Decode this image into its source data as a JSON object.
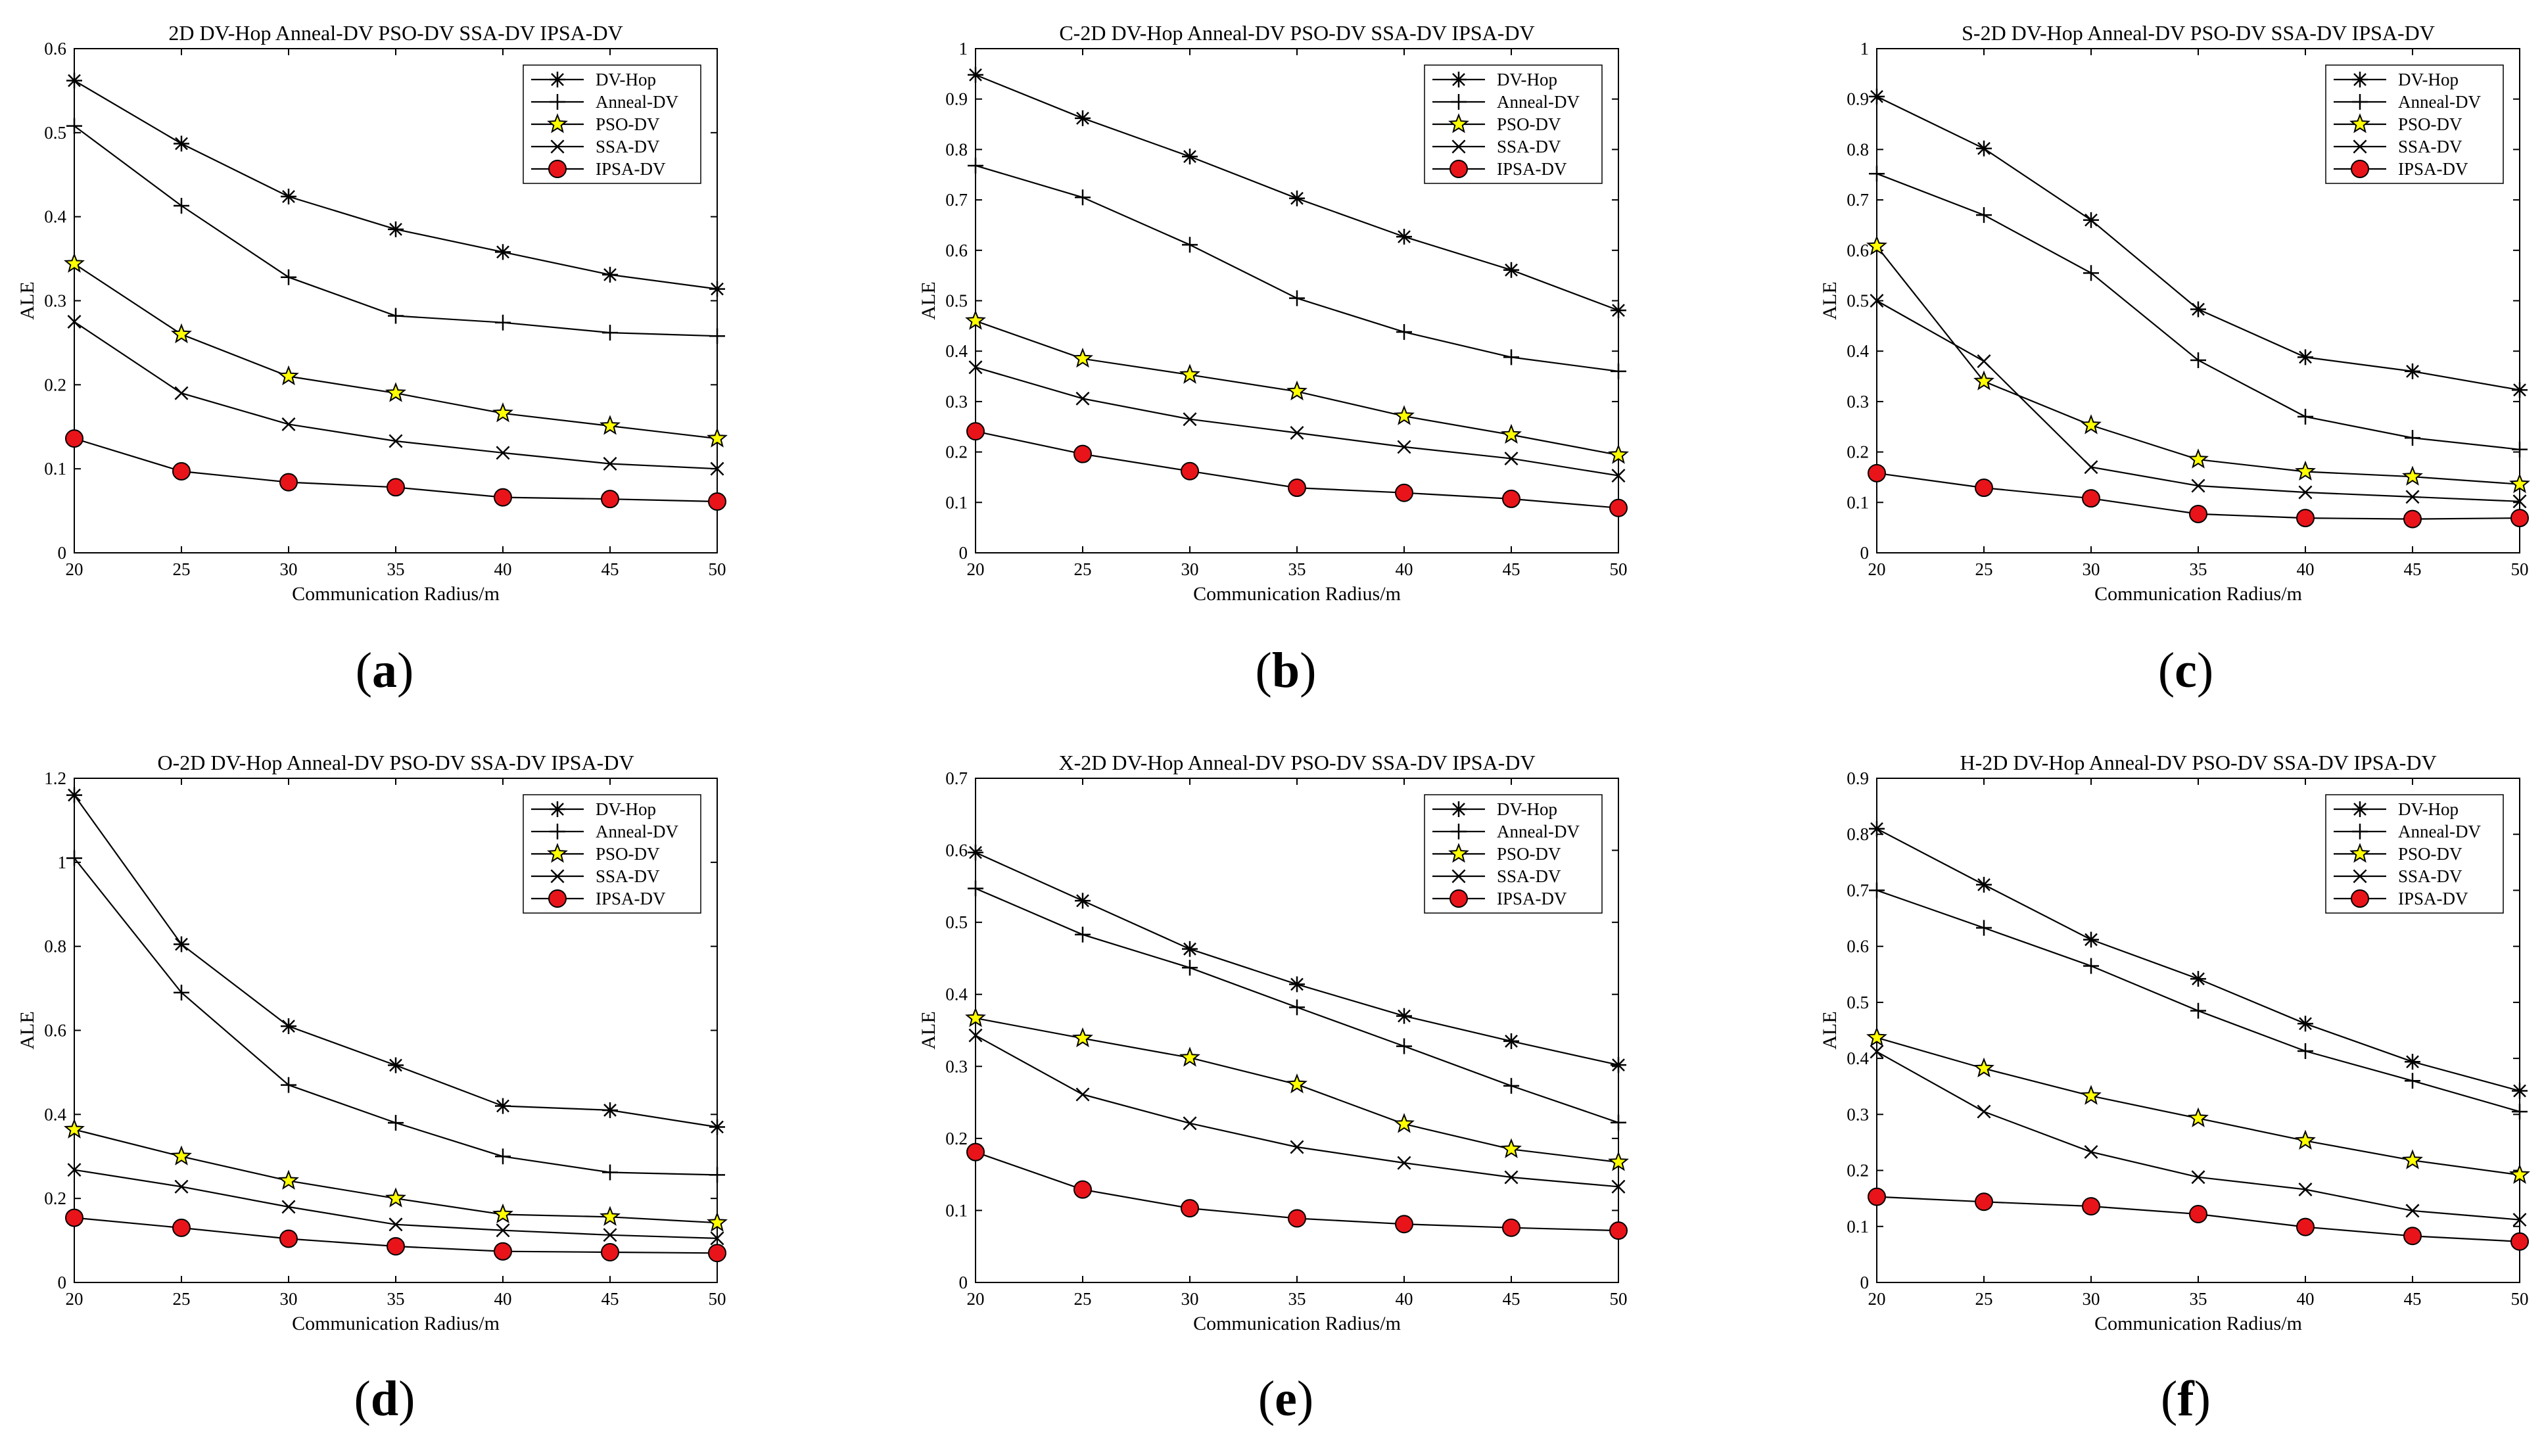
{
  "figure": {
    "panels": [
      {
        "caption_letter": "a",
        "open": "(",
        "close": ")"
      },
      {
        "caption_letter": "b",
        "open": "(",
        "close": ")"
      },
      {
        "caption_letter": "c",
        "open": "(",
        "close": ")"
      },
      {
        "caption_letter": "d",
        "open": "(",
        "close": ")"
      },
      {
        "caption_letter": "e",
        "open": "(",
        "close": ")"
      },
      {
        "caption_letter": "f",
        "open": "(",
        "close": ")"
      }
    ]
  },
  "chart_data": [
    {
      "type": "line",
      "title": "2D DV-Hop Anneal-DV PSO-DV SSA-DV IPSA-DV",
      "xlabel": "Communication Radius/m",
      "ylabel": "ALE",
      "x": [
        20,
        25,
        30,
        35,
        40,
        45,
        50
      ],
      "xlim": [
        20,
        50
      ],
      "ylim": [
        0,
        0.6
      ],
      "yticks": [
        0,
        0.1,
        0.2,
        0.3,
        0.4,
        0.5,
        0.6
      ],
      "ytick_labels": [
        "0",
        "0.1",
        "0.2",
        "0.3",
        "0.4",
        "0.5",
        "0.6"
      ],
      "legend": "top-right",
      "series": [
        {
          "name": "DV-Hop",
          "marker": "asterisk",
          "values": [
            0.562,
            0.487,
            0.424,
            0.385,
            0.358,
            0.331,
            0.314
          ]
        },
        {
          "name": "Anneal-DV",
          "marker": "plus",
          "values": [
            0.508,
            0.413,
            0.328,
            0.282,
            0.274,
            0.262,
            0.258
          ]
        },
        {
          "name": "PSO-DV",
          "marker": "star",
          "values": [
            0.344,
            0.26,
            0.21,
            0.19,
            0.166,
            0.151,
            0.136
          ]
        },
        {
          "name": "SSA-DV",
          "marker": "x",
          "values": [
            0.275,
            0.19,
            0.153,
            0.133,
            0.119,
            0.106,
            0.1
          ]
        },
        {
          "name": "IPSA-DV",
          "marker": "circle",
          "values": [
            0.136,
            0.097,
            0.084,
            0.078,
            0.066,
            0.064,
            0.061
          ]
        }
      ]
    },
    {
      "type": "line",
      "title": "C-2D DV-Hop Anneal-DV PSO-DV SSA-DV IPSA-DV",
      "xlabel": "Communication Radius/m",
      "ylabel": "ALE",
      "x": [
        20,
        25,
        30,
        35,
        40,
        45,
        50
      ],
      "xlim": [
        20,
        50
      ],
      "ylim": [
        0,
        1
      ],
      "yticks": [
        0,
        0.1,
        0.2,
        0.3,
        0.4,
        0.5,
        0.6,
        0.7,
        0.8,
        0.9,
        1
      ],
      "ytick_labels": [
        "0",
        "0.1",
        "0.2",
        "0.3",
        "0.4",
        "0.5",
        "0.6",
        "0.7",
        "0.8",
        "0.9",
        "1"
      ],
      "legend": "top-right",
      "series": [
        {
          "name": "DV-Hop",
          "marker": "asterisk",
          "values": [
            0.948,
            0.862,
            0.786,
            0.703,
            0.627,
            0.561,
            0.481
          ]
        },
        {
          "name": "Anneal-DV",
          "marker": "plus",
          "values": [
            0.768,
            0.705,
            0.611,
            0.505,
            0.438,
            0.388,
            0.36
          ]
        },
        {
          "name": "PSO-DV",
          "marker": "star",
          "values": [
            0.46,
            0.385,
            0.353,
            0.32,
            0.271,
            0.234,
            0.194
          ]
        },
        {
          "name": "SSA-DV",
          "marker": "x",
          "values": [
            0.368,
            0.306,
            0.265,
            0.238,
            0.21,
            0.187,
            0.153
          ]
        },
        {
          "name": "IPSA-DV",
          "marker": "circle",
          "values": [
            0.241,
            0.196,
            0.162,
            0.129,
            0.119,
            0.107,
            0.089
          ]
        }
      ]
    },
    {
      "type": "line",
      "title": "S-2D DV-Hop Anneal-DV PSO-DV SSA-DV IPSA-DV",
      "xlabel": "Communication Radius/m",
      "ylabel": "ALE",
      "x": [
        20,
        25,
        30,
        35,
        40,
        45,
        50
      ],
      "xlim": [
        20,
        50
      ],
      "ylim": [
        0,
        1
      ],
      "yticks": [
        0,
        0.1,
        0.2,
        0.3,
        0.4,
        0.5,
        0.6,
        0.7,
        0.8,
        0.9,
        1
      ],
      "ytick_labels": [
        "0",
        "0.1",
        "0.2",
        "0.3",
        "0.4",
        "0.5",
        "0.6",
        "0.7",
        "0.8",
        "0.9",
        "1"
      ],
      "legend": "top-right",
      "series": [
        {
          "name": "DV-Hop",
          "marker": "asterisk",
          "values": [
            0.905,
            0.802,
            0.66,
            0.483,
            0.388,
            0.36,
            0.323
          ]
        },
        {
          "name": "Anneal-DV",
          "marker": "plus",
          "values": [
            0.752,
            0.67,
            0.555,
            0.382,
            0.27,
            0.228,
            0.205
          ]
        },
        {
          "name": "PSO-DV",
          "marker": "star",
          "values": [
            0.608,
            0.34,
            0.253,
            0.185,
            0.161,
            0.151,
            0.136
          ]
        },
        {
          "name": "SSA-DV",
          "marker": "x",
          "values": [
            0.5,
            0.38,
            0.17,
            0.133,
            0.12,
            0.111,
            0.102
          ]
        },
        {
          "name": "IPSA-DV",
          "marker": "circle",
          "values": [
            0.158,
            0.129,
            0.108,
            0.077,
            0.069,
            0.067,
            0.069
          ]
        }
      ]
    },
    {
      "type": "line",
      "title": "O-2D DV-Hop Anneal-DV PSO-DV SSA-DV IPSA-DV",
      "xlabel": "Communication Radius/m",
      "ylabel": "ALE",
      "x": [
        20,
        25,
        30,
        35,
        40,
        45,
        50
      ],
      "xlim": [
        20,
        50
      ],
      "ylim": [
        0,
        1.2
      ],
      "yticks": [
        0,
        0.2,
        0.4,
        0.6,
        0.8,
        1,
        1.2
      ],
      "ytick_labels": [
        "0",
        "0.2",
        "0.4",
        "0.6",
        "0.8",
        "1",
        "1.2"
      ],
      "legend": "top-right",
      "series": [
        {
          "name": "DV-Hop",
          "marker": "asterisk",
          "values": [
            1.16,
            0.805,
            0.61,
            0.517,
            0.42,
            0.41,
            0.37
          ]
        },
        {
          "name": "Anneal-DV",
          "marker": "plus",
          "values": [
            1.01,
            0.69,
            0.47,
            0.38,
            0.3,
            0.262,
            0.256
          ]
        },
        {
          "name": "PSO-DV",
          "marker": "star",
          "values": [
            0.364,
            0.3,
            0.242,
            0.2,
            0.162,
            0.156,
            0.142
          ]
        },
        {
          "name": "SSA-DV",
          "marker": "x",
          "values": [
            0.268,
            0.228,
            0.18,
            0.138,
            0.124,
            0.113,
            0.105
          ]
        },
        {
          "name": "IPSA-DV",
          "marker": "circle",
          "values": [
            0.154,
            0.13,
            0.104,
            0.086,
            0.074,
            0.072,
            0.07
          ]
        }
      ]
    },
    {
      "type": "line",
      "title": "X-2D DV-Hop Anneal-DV PSO-DV SSA-DV IPSA-DV",
      "xlabel": "Communication Radius/m",
      "ylabel": "ALE",
      "x": [
        20,
        25,
        30,
        35,
        40,
        45,
        50
      ],
      "xlim": [
        20,
        50
      ],
      "ylim": [
        0,
        0.7
      ],
      "yticks": [
        0,
        0.1,
        0.2,
        0.3,
        0.4,
        0.5,
        0.6,
        0.7
      ],
      "ytick_labels": [
        "0",
        "0.1",
        "0.2",
        "0.3",
        "0.4",
        "0.5",
        "0.6",
        "0.7"
      ],
      "legend": "top-right",
      "series": [
        {
          "name": "DV-Hop",
          "marker": "asterisk",
          "values": [
            0.597,
            0.53,
            0.463,
            0.414,
            0.37,
            0.335,
            0.302
          ]
        },
        {
          "name": "Anneal-DV",
          "marker": "plus",
          "values": [
            0.547,
            0.483,
            0.437,
            0.382,
            0.328,
            0.273,
            0.222
          ]
        },
        {
          "name": "PSO-DV",
          "marker": "star",
          "values": [
            0.367,
            0.339,
            0.312,
            0.275,
            0.22,
            0.185,
            0.167
          ]
        },
        {
          "name": "SSA-DV",
          "marker": "x",
          "values": [
            0.343,
            0.261,
            0.221,
            0.188,
            0.166,
            0.146,
            0.133
          ]
        },
        {
          "name": "IPSA-DV",
          "marker": "circle",
          "values": [
            0.181,
            0.129,
            0.103,
            0.089,
            0.081,
            0.076,
            0.072
          ]
        }
      ]
    },
    {
      "type": "line",
      "title": "H-2D DV-Hop Anneal-DV PSO-DV SSA-DV IPSA-DV",
      "xlabel": "Communication Radius/m",
      "ylabel": "ALE",
      "x": [
        20,
        25,
        30,
        35,
        40,
        45,
        50
      ],
      "xlim": [
        20,
        50
      ],
      "ylim": [
        0,
        0.9
      ],
      "yticks": [
        0,
        0.1,
        0.2,
        0.3,
        0.4,
        0.5,
        0.6,
        0.7,
        0.8,
        0.9
      ],
      "ytick_labels": [
        "0",
        "0.1",
        "0.2",
        "0.3",
        "0.4",
        "0.5",
        "0.6",
        "0.7",
        "0.8",
        "0.9"
      ],
      "legend": "top-right",
      "series": [
        {
          "name": "DV-Hop",
          "marker": "asterisk",
          "values": [
            0.81,
            0.71,
            0.612,
            0.542,
            0.462,
            0.394,
            0.342
          ]
        },
        {
          "name": "Anneal-DV",
          "marker": "plus",
          "values": [
            0.7,
            0.633,
            0.565,
            0.485,
            0.413,
            0.36,
            0.305
          ]
        },
        {
          "name": "PSO-DV",
          "marker": "star",
          "values": [
            0.437,
            0.382,
            0.333,
            0.293,
            0.253,
            0.218,
            0.192
          ]
        },
        {
          "name": "SSA-DV",
          "marker": "x",
          "values": [
            0.412,
            0.305,
            0.233,
            0.188,
            0.166,
            0.128,
            0.112
          ]
        },
        {
          "name": "IPSA-DV",
          "marker": "circle",
          "values": [
            0.153,
            0.144,
            0.136,
            0.122,
            0.099,
            0.083,
            0.073
          ]
        }
      ]
    }
  ]
}
